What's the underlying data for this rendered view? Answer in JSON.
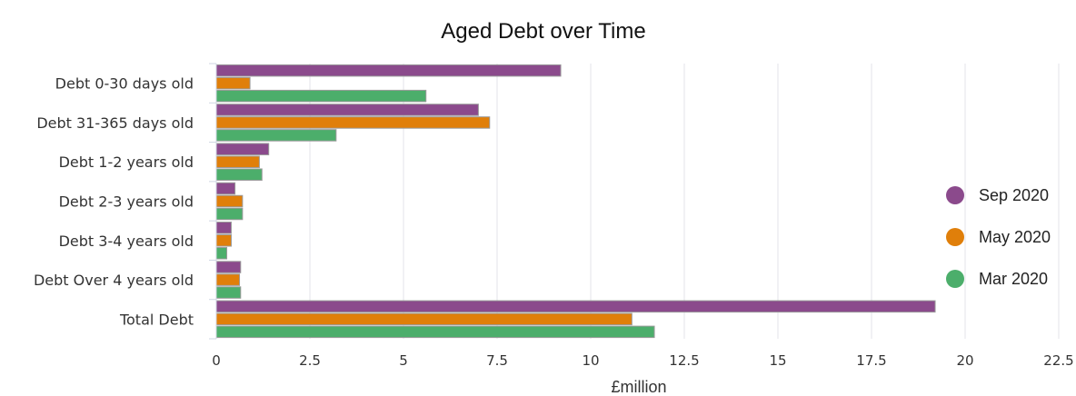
{
  "chart_data": {
    "type": "bar",
    "orientation": "horizontal",
    "title": "Aged Debt over Time",
    "xlabel": "£million",
    "ylabel": "",
    "xlim": [
      0,
      22.5
    ],
    "ticks": [
      "0",
      "2.5",
      "5",
      "7.5",
      "10",
      "12.5",
      "15",
      "17.5",
      "20",
      "22.5"
    ],
    "categories": [
      "Debt 0-30 days old",
      "Debt 31-365 days old",
      "Debt 1-2 years old",
      "Debt 2-3 years old",
      "Debt 3-4 years old",
      "Debt Over 4 years old",
      "Total Debt"
    ],
    "series": [
      {
        "name": "Sep 2020",
        "color": "#8b4a8c",
        "values": [
          9.2,
          7.0,
          1.4,
          0.5,
          0.4,
          0.65,
          19.2
        ]
      },
      {
        "name": "May 2020",
        "color": "#e07f0a",
        "values": [
          0.9,
          7.3,
          1.15,
          0.7,
          0.4,
          0.62,
          11.1
        ]
      },
      {
        "name": "Mar 2020",
        "color": "#4cae6b",
        "values": [
          5.6,
          3.2,
          1.22,
          0.7,
          0.28,
          0.65,
          11.7
        ]
      }
    ],
    "grid": true,
    "legend_position": "right"
  }
}
